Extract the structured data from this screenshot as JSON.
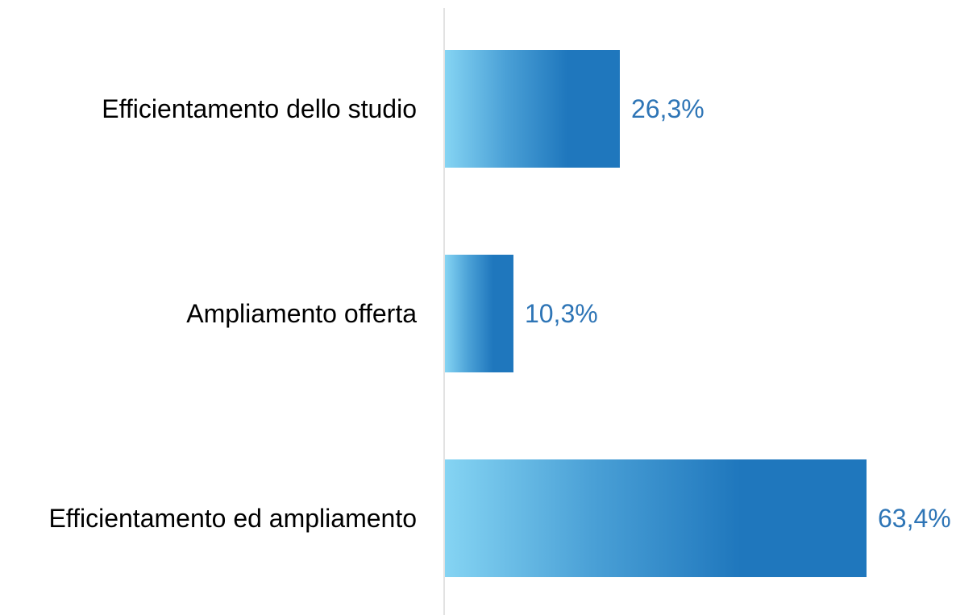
{
  "chart_data": {
    "type": "bar",
    "orientation": "horizontal",
    "categories": [
      "Efficientamento dello studio",
      "Ampliamento offerta",
      "Efficientamento ed ampliamento"
    ],
    "values": [
      26.3,
      10.3,
      63.4
    ],
    "value_labels": [
      "26,3%",
      "10,3%",
      "63,4%"
    ],
    "unit": "%",
    "xlim": [
      0,
      63.4
    ],
    "grid": false,
    "legend": "none",
    "title": "",
    "xlabel": "",
    "ylabel": ""
  },
  "colors": {
    "bar_gradient_start": "#85d4f3",
    "bar_gradient_mid": "#4aa0d6",
    "bar_gradient_end": "#1f77bd",
    "value_label": "#2e75b6",
    "category_label": "#000000",
    "axis_line": "#d9d9d9"
  }
}
